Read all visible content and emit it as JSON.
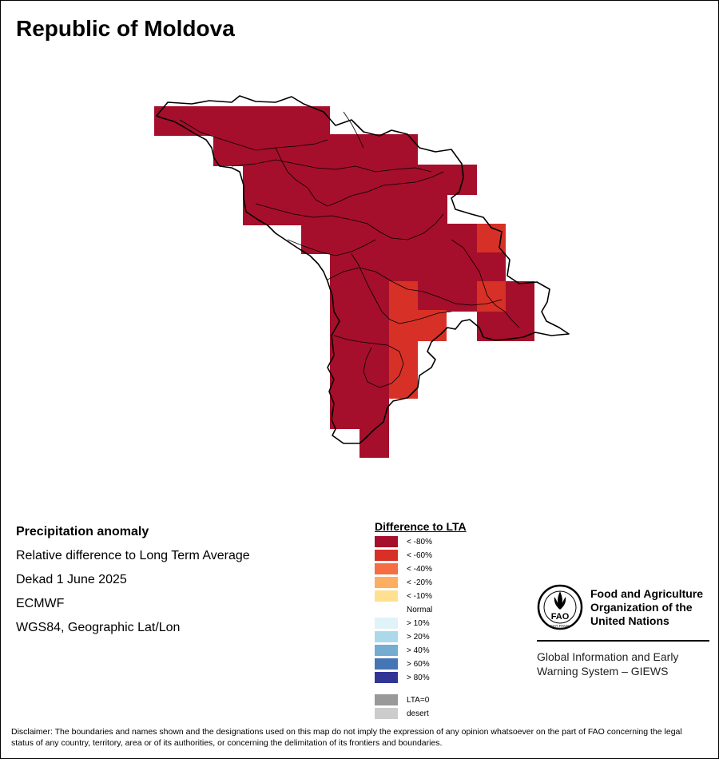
{
  "title": "Republic of Moldova",
  "info": {
    "heading": "Precipitation anomaly",
    "subtitle": "Relative difference to Long Term Average",
    "period": "Dekad 1 June 2025",
    "source": "ECMWF",
    "projection": "WGS84, Geographic Lat/Lon"
  },
  "legend": {
    "title": "Difference to LTA",
    "items": [
      {
        "label": "< -80%",
        "color": "#a50f2b"
      },
      {
        "label": "< -60%",
        "color": "#d73027"
      },
      {
        "label": "< -40%",
        "color": "#f46d43"
      },
      {
        "label": "< -20%",
        "color": "#fdae61"
      },
      {
        "label": "< -10%",
        "color": "#fee090"
      },
      {
        "label": "Normal",
        "color": "#ffffff"
      },
      {
        "label": "> 10%",
        "color": "#e0f3f8"
      },
      {
        "label": "> 20%",
        "color": "#abd9e9"
      },
      {
        "label": "> 40%",
        "color": "#74add1"
      },
      {
        "label": "> 60%",
        "color": "#4575b4"
      },
      {
        "label": "> 80%",
        "color": "#313695"
      },
      {
        "label": "LTA=0",
        "color": "#999999"
      },
      {
        "label": "desert",
        "color": "#cccccc"
      }
    ]
  },
  "organization": {
    "line1": "Food and Agriculture",
    "line2": "Organization of the",
    "line3": "United Nations",
    "logo_text": "FAO",
    "motto": "FIAT PANIS",
    "system_line1": "Global Information and Early",
    "system_line2": "Warning System – GIEWS"
  },
  "disclaimer": "Disclaimer: The boundaries and names shown and the designations used on this map do not imply the expression of any opinion whatsoever on the part of FAO concerning the legal status of any country, territory, area or of its authorities, or concerning the delimitation of its frontiers and boundaries.",
  "colors": {
    "extreme_dry": "#a50f2b",
    "very_dry": "#d73027",
    "border": "#000000"
  }
}
